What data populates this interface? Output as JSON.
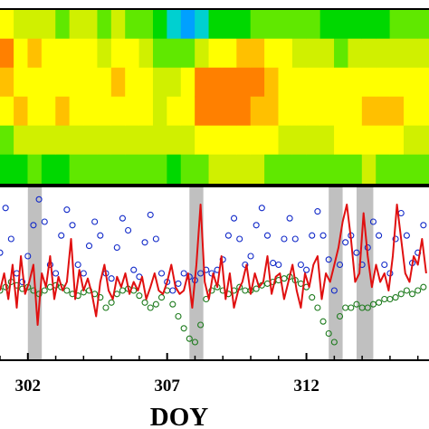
{
  "chart_data": [
    {
      "type": "heatmap",
      "description_panel": "top",
      "xlim": [
        301,
        316.4
      ],
      "colormap": [
        "#1040d0",
        "#00a0ff",
        "#00d0d0",
        "#00d800",
        "#60e800",
        "#d0f000",
        "#ffff00",
        "#ffc000",
        "#ff8000",
        "#e01010"
      ],
      "profile_columns": [
        {
          "x": 301.0,
          "levels": [
            6,
            8,
            7,
            6,
            4,
            3
          ]
        },
        {
          "x": 301.5,
          "levels": [
            5,
            6,
            6,
            7,
            5,
            3
          ]
        },
        {
          "x": 302.0,
          "levels": [
            5,
            7,
            6,
            6,
            5,
            4
          ]
        },
        {
          "x": 302.5,
          "levels": [
            5,
            6,
            6,
            6,
            5,
            3
          ]
        },
        {
          "x": 303.0,
          "levels": [
            4,
            6,
            6,
            7,
            5,
            3
          ]
        },
        {
          "x": 303.5,
          "levels": [
            5,
            6,
            6,
            6,
            5,
            4
          ]
        },
        {
          "x": 304.0,
          "levels": [
            5,
            6,
            6,
            6,
            5,
            4
          ]
        },
        {
          "x": 304.5,
          "levels": [
            4,
            5,
            6,
            6,
            5,
            4
          ]
        },
        {
          "x": 305.0,
          "levels": [
            5,
            6,
            7,
            6,
            5,
            4
          ]
        },
        {
          "x": 305.5,
          "levels": [
            4,
            6,
            6,
            6,
            5,
            4
          ]
        },
        {
          "x": 306.0,
          "levels": [
            4,
            5,
            6,
            6,
            5,
            4
          ]
        },
        {
          "x": 306.5,
          "levels": [
            3,
            4,
            5,
            5,
            5,
            4
          ]
        },
        {
          "x": 307.0,
          "levels": [
            2,
            4,
            5,
            6,
            5,
            3
          ]
        },
        {
          "x": 307.5,
          "levels": [
            1,
            4,
            6,
            6,
            5,
            4
          ]
        },
        {
          "x": 308.0,
          "levels": [
            2,
            5,
            8,
            8,
            6,
            4
          ]
        },
        {
          "x": 308.5,
          "levels": [
            3,
            6,
            8,
            8,
            6,
            5
          ]
        },
        {
          "x": 309.0,
          "levels": [
            3,
            6,
            8,
            8,
            6,
            5
          ]
        },
        {
          "x": 309.5,
          "levels": [
            3,
            7,
            8,
            8,
            6,
            5
          ]
        },
        {
          "x": 310.0,
          "levels": [
            4,
            7,
            8,
            7,
            6,
            5
          ]
        },
        {
          "x": 310.5,
          "levels": [
            4,
            6,
            7,
            7,
            6,
            4
          ]
        },
        {
          "x": 311.0,
          "levels": [
            4,
            6,
            6,
            6,
            5,
            4
          ]
        },
        {
          "x": 311.5,
          "levels": [
            4,
            5,
            6,
            6,
            5,
            4
          ]
        },
        {
          "x": 312.0,
          "levels": [
            4,
            5,
            6,
            6,
            5,
            4
          ]
        },
        {
          "x": 312.5,
          "levels": [
            3,
            5,
            6,
            6,
            5,
            4
          ]
        },
        {
          "x": 313.0,
          "levels": [
            3,
            4,
            6,
            6,
            6,
            4
          ]
        },
        {
          "x": 313.5,
          "levels": [
            3,
            5,
            6,
            6,
            6,
            4
          ]
        },
        {
          "x": 314.0,
          "levels": [
            3,
            5,
            6,
            7,
            6,
            5
          ]
        },
        {
          "x": 314.5,
          "levels": [
            3,
            5,
            6,
            7,
            6,
            4
          ]
        },
        {
          "x": 315.0,
          "levels": [
            4,
            5,
            6,
            7,
            6,
            4
          ]
        },
        {
          "x": 315.5,
          "levels": [
            4,
            5,
            6,
            6,
            5,
            4
          ]
        },
        {
          "x": 316.0,
          "levels": [
            4,
            5,
            6,
            6,
            5,
            4
          ]
        }
      ]
    },
    {
      "type": "line",
      "description_panel": "bottom",
      "xlim": [
        301,
        316.4
      ],
      "ylim": [
        0,
        1
      ],
      "xticks": [
        302,
        307,
        312
      ],
      "xtick_labels": [
        "302",
        "307",
        "312"
      ],
      "xlabel": "DOY",
      "shaded_spans": [
        [
          302.0,
          302.5
        ],
        [
          307.8,
          308.3
        ],
        [
          312.8,
          313.3
        ],
        [
          313.8,
          314.4
        ]
      ],
      "shade_color": "#c0c0c0",
      "series": [
        {
          "color": "#1028c8",
          "marker": "open-circle",
          "x": [
            301.0,
            301.2,
            301.4,
            301.6,
            301.8,
            302.0,
            302.2,
            302.4,
            302.6,
            302.8,
            303.0,
            303.2,
            303.4,
            303.6,
            303.8,
            304.0,
            304.2,
            304.4,
            304.6,
            304.8,
            305.0,
            305.2,
            305.4,
            305.6,
            305.8,
            306.0,
            306.2,
            306.4,
            306.6,
            306.8,
            307.0,
            307.2,
            307.4,
            307.6,
            307.8,
            308.0,
            308.2,
            308.4,
            308.6,
            308.8,
            309.0,
            309.2,
            309.4,
            309.6,
            309.8,
            310.0,
            310.2,
            310.4,
            310.6,
            310.8,
            311.0,
            311.2,
            311.4,
            311.6,
            311.8,
            312.0,
            312.2,
            312.4,
            312.6,
            312.8,
            313.0,
            313.2,
            313.4,
            313.6,
            313.8,
            314.0,
            314.2,
            314.4,
            314.6,
            314.8,
            315.0,
            315.2,
            315.4,
            315.6,
            315.8,
            316.0,
            316.2
          ],
          "y": [
            0.62,
            0.88,
            0.7,
            0.5,
            0.45,
            0.6,
            0.78,
            0.93,
            0.8,
            0.55,
            0.5,
            0.72,
            0.87,
            0.78,
            0.55,
            0.5,
            0.66,
            0.8,
            0.72,
            0.5,
            0.47,
            0.65,
            0.82,
            0.75,
            0.52,
            0.48,
            0.68,
            0.84,
            0.7,
            0.5,
            0.45,
            0.4,
            0.44,
            0.5,
            0.48,
            0.46,
            0.5,
            0.52,
            0.5,
            0.52,
            0.58,
            0.72,
            0.82,
            0.7,
            0.55,
            0.6,
            0.78,
            0.88,
            0.72,
            0.56,
            0.55,
            0.7,
            0.82,
            0.7,
            0.55,
            0.52,
            0.72,
            0.86,
            0.72,
            0.58,
            0.4,
            0.55,
            0.68,
            0.72,
            0.62,
            0.55,
            0.65,
            0.8,
            0.72,
            0.55,
            0.5,
            0.7,
            0.85,
            0.72,
            0.56,
            0.62,
            0.78
          ]
        },
        {
          "color": "#1c7a1c",
          "marker": "open-circle",
          "x": [
            301.0,
            301.2,
            301.4,
            301.6,
            301.8,
            302.0,
            302.2,
            302.4,
            302.6,
            302.8,
            303.0,
            303.2,
            303.4,
            303.6,
            303.8,
            304.0,
            304.2,
            304.4,
            304.6,
            304.8,
            305.0,
            305.2,
            305.4,
            305.6,
            305.8,
            306.0,
            306.2,
            306.4,
            306.6,
            306.8,
            307.0,
            307.2,
            307.4,
            307.6,
            307.8,
            308.0,
            308.2,
            308.4,
            308.6,
            308.8,
            309.0,
            309.2,
            309.4,
            309.6,
            309.8,
            310.0,
            310.2,
            310.4,
            310.6,
            310.8,
            311.0,
            311.2,
            311.4,
            311.6,
            311.8,
            312.0,
            312.2,
            312.4,
            312.6,
            312.8,
            313.0,
            313.2,
            313.4,
            313.6,
            313.8,
            314.0,
            314.2,
            314.4,
            314.6,
            314.8,
            315.0,
            315.2,
            315.4,
            315.6,
            315.8,
            316.0,
            316.2
          ],
          "y": [
            0.4,
            0.42,
            0.45,
            0.43,
            0.41,
            0.42,
            0.4,
            0.38,
            0.4,
            0.42,
            0.43,
            0.42,
            0.4,
            0.38,
            0.37,
            0.39,
            0.4,
            0.38,
            0.36,
            0.3,
            0.33,
            0.38,
            0.4,
            0.41,
            0.4,
            0.37,
            0.33,
            0.3,
            0.32,
            0.36,
            0.4,
            0.32,
            0.25,
            0.18,
            0.12,
            0.1,
            0.2,
            0.35,
            0.4,
            0.42,
            0.4,
            0.38,
            0.4,
            0.42,
            0.4,
            0.4,
            0.41,
            0.43,
            0.44,
            0.45,
            0.46,
            0.47,
            0.48,
            0.46,
            0.44,
            0.42,
            0.36,
            0.3,
            0.22,
            0.15,
            0.1,
            0.25,
            0.3,
            0.3,
            0.32,
            0.3,
            0.3,
            0.32,
            0.33,
            0.35,
            0.35,
            0.36,
            0.38,
            0.4,
            0.38,
            0.4,
            0.42
          ]
        },
        {
          "color": "#e01010",
          "marker": "none",
          "x": [
            301.0,
            301.15,
            301.3,
            301.45,
            301.6,
            301.75,
            301.9,
            302.05,
            302.2,
            302.35,
            302.5,
            302.65,
            302.8,
            302.95,
            303.1,
            303.25,
            303.4,
            303.55,
            303.7,
            303.85,
            304.0,
            304.15,
            304.3,
            304.45,
            304.6,
            304.75,
            304.9,
            305.05,
            305.2,
            305.35,
            305.5,
            305.65,
            305.8,
            305.95,
            306.1,
            306.25,
            306.4,
            306.55,
            306.7,
            306.85,
            307.0,
            307.15,
            307.3,
            307.45,
            307.6,
            307.75,
            307.9,
            308.05,
            308.2,
            308.35,
            308.5,
            308.65,
            308.8,
            308.95,
            309.1,
            309.25,
            309.4,
            309.55,
            309.7,
            309.85,
            310.0,
            310.15,
            310.3,
            310.45,
            310.6,
            310.75,
            310.9,
            311.05,
            311.2,
            311.35,
            311.5,
            311.65,
            311.8,
            311.95,
            312.1,
            312.25,
            312.4,
            312.55,
            312.7,
            312.85,
            313.0,
            313.15,
            313.3,
            313.45,
            313.6,
            313.75,
            313.9,
            314.05,
            314.2,
            314.35,
            314.5,
            314.65,
            314.8,
            314.95,
            315.1,
            315.25,
            315.4,
            315.55,
            315.7,
            315.85,
            316.0,
            316.15,
            316.3
          ],
          "y": [
            0.4,
            0.5,
            0.35,
            0.55,
            0.3,
            0.6,
            0.38,
            0.45,
            0.55,
            0.2,
            0.5,
            0.42,
            0.6,
            0.35,
            0.48,
            0.4,
            0.45,
            0.7,
            0.35,
            0.52,
            0.4,
            0.47,
            0.38,
            0.25,
            0.45,
            0.55,
            0.4,
            0.35,
            0.48,
            0.42,
            0.5,
            0.38,
            0.45,
            0.4,
            0.48,
            0.35,
            0.42,
            0.5,
            0.4,
            0.38,
            0.45,
            0.55,
            0.42,
            0.38,
            0.4,
            0.5,
            0.3,
            0.55,
            0.9,
            0.45,
            0.35,
            0.5,
            0.42,
            0.6,
            0.35,
            0.5,
            0.3,
            0.4,
            0.45,
            0.55,
            0.38,
            0.5,
            0.42,
            0.45,
            0.6,
            0.38,
            0.48,
            0.5,
            0.35,
            0.45,
            0.55,
            0.4,
            0.3,
            0.5,
            0.42,
            0.55,
            0.6,
            0.35,
            0.5,
            0.45,
            0.55,
            0.65,
            0.8,
            0.9,
            0.7,
            0.45,
            0.5,
            0.85,
            0.6,
            0.42,
            0.55,
            0.45,
            0.5,
            0.4,
            0.6,
            0.9,
            0.7,
            0.5,
            0.45,
            0.6,
            0.55,
            0.7,
            0.5
          ]
        }
      ]
    }
  ]
}
